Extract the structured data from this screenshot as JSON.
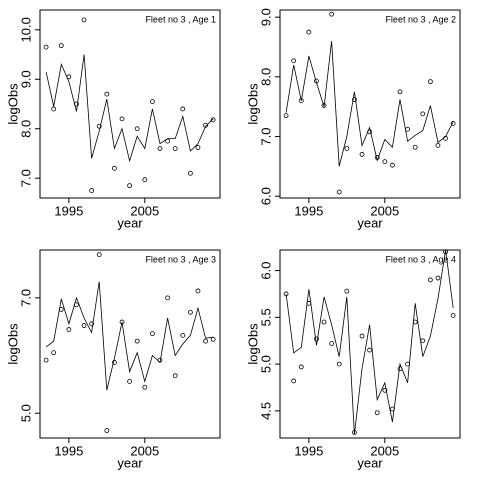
{
  "chart_data": [
    {
      "type": "line",
      "title": "Fleet no 3 , Age 1",
      "xlabel": "year",
      "ylabel": "logObs",
      "x": [
        1992,
        1993,
        1994,
        1995,
        1996,
        1997,
        1998,
        1999,
        2000,
        2001,
        2002,
        2003,
        2004,
        2005,
        2006,
        2007,
        2008,
        2009,
        2010,
        2011,
        2012,
        2013,
        2014
      ],
      "xlim": [
        1991.2,
        2014.9
      ],
      "xticks": [
        1995,
        2005
      ],
      "ylim": [
        6.6,
        10.4
      ],
      "yticks": [
        {
          "value": 7,
          "label": "7.0"
        },
        {
          "value": 8,
          "label": "8.0"
        },
        {
          "value": 9,
          "label": "9.0"
        },
        {
          "value": 10,
          "label": "10.0"
        }
      ],
      "series": [
        {
          "style": "points",
          "color": "#000000",
          "values": [
            9.65,
            8.4,
            9.68,
            9.05,
            8.5,
            10.2,
            6.75,
            8.05,
            8.7,
            7.2,
            8.2,
            6.85,
            8.0,
            6.97,
            8.55,
            7.6,
            7.75,
            7.6,
            8.4,
            7.1,
            7.62,
            8.07,
            8.18
          ]
        },
        {
          "style": "line",
          "color": "#000000",
          "values": [
            9.15,
            8.45,
            9.3,
            8.95,
            8.35,
            9.5,
            7.4,
            7.95,
            8.6,
            7.6,
            8.0,
            7.35,
            7.85,
            7.6,
            8.4,
            7.7,
            7.8,
            7.8,
            8.25,
            7.55,
            7.7,
            8.05,
            8.2
          ]
        }
      ]
    },
    {
      "type": "line",
      "title": "Fleet no 3 , Age 2",
      "xlabel": "year",
      "ylabel": "logObs",
      "x": [
        1992,
        1993,
        1994,
        1995,
        1996,
        1997,
        1998,
        1999,
        2000,
        2001,
        2002,
        2003,
        2004,
        2005,
        2006,
        2007,
        2008,
        2009,
        2010,
        2011,
        2012,
        2013,
        2014
      ],
      "xlim": [
        1991.2,
        2014.9
      ],
      "xticks": [
        1995,
        2005
      ],
      "ylim": [
        5.97,
        9.12
      ],
      "yticks": [
        {
          "value": 6,
          "label": "6.0"
        },
        {
          "value": 7,
          "label": "7.0"
        },
        {
          "value": 8,
          "label": "8.0"
        },
        {
          "value": 9,
          "label": "9.0"
        }
      ],
      "series": [
        {
          "style": "points",
          "color": "#000000",
          "values": [
            7.35,
            8.27,
            7.6,
            8.75,
            7.93,
            7.52,
            9.05,
            6.07,
            6.8,
            7.62,
            6.7,
            7.08,
            6.65,
            6.58,
            6.52,
            7.75,
            7.12,
            6.82,
            7.38,
            7.92,
            6.85,
            6.97,
            7.22
          ]
        },
        {
          "style": "line",
          "color": "#000000",
          "values": [
            7.4,
            8.2,
            7.6,
            8.35,
            7.9,
            7.5,
            8.6,
            6.5,
            7.0,
            7.75,
            6.85,
            7.15,
            6.6,
            6.95,
            6.82,
            7.62,
            6.92,
            7.02,
            7.1,
            7.52,
            6.9,
            7.0,
            7.25
          ]
        }
      ]
    },
    {
      "type": "line",
      "title": "Fleet no 3 , Age 3",
      "xlabel": "year",
      "ylabel": "logObs",
      "x": [
        1992,
        1993,
        1994,
        1995,
        1996,
        1997,
        1998,
        1999,
        2000,
        2001,
        2002,
        2003,
        2004,
        2005,
        2006,
        2007,
        2008,
        2009,
        2010,
        2011,
        2012,
        2013,
        2014
      ],
      "xlim": [
        1991.2,
        2014.9
      ],
      "xticks": [
        1995,
        2005
      ],
      "ylim": [
        4.57,
        7.83
      ],
      "yticks": [
        {
          "value": 5,
          "label": "5.0"
        },
        {
          "value": 7,
          "label": "7.0"
        }
      ],
      "series": [
        {
          "style": "points",
          "color": "#000000",
          "values": [
            5.92,
            6.05,
            6.8,
            6.45,
            6.88,
            6.52,
            6.55,
            7.75,
            4.7,
            5.88,
            6.58,
            5.55,
            6.25,
            5.45,
            6.38,
            5.92,
            7.0,
            5.65,
            6.35,
            6.75,
            7.12,
            6.25,
            6.28
          ]
        },
        {
          "style": "line",
          "color": "#000000",
          "values": [
            6.15,
            6.25,
            6.98,
            6.55,
            7.0,
            6.65,
            6.4,
            7.28,
            5.4,
            5.95,
            6.58,
            5.72,
            6.05,
            5.55,
            6.0,
            5.88,
            6.65,
            6.0,
            6.2,
            6.35,
            6.82,
            6.3,
            6.32
          ]
        }
      ]
    },
    {
      "type": "line",
      "title": "Fleet no 3 , Age 4",
      "xlabel": "year",
      "ylabel": "logObs",
      "x": [
        1992,
        1993,
        1994,
        1995,
        1996,
        1997,
        1998,
        1999,
        2000,
        2001,
        2002,
        2003,
        2004,
        2005,
        2006,
        2007,
        2008,
        2009,
        2010,
        2011,
        2012,
        2013,
        2014
      ],
      "xlim": [
        1991.2,
        2014.9
      ],
      "xticks": [
        1995,
        2005
      ],
      "ylim": [
        4.21,
        6.22
      ],
      "yticks": [
        {
          "value": 4.5,
          "label": "4.5"
        },
        {
          "value": 5,
          "label": "5.0"
        },
        {
          "value": 5.5,
          "label": "5.5"
        },
        {
          "value": 6,
          "label": "6.0"
        }
      ],
      "series": [
        {
          "style": "points",
          "color": "#000000",
          "values": [
            5.75,
            4.82,
            4.97,
            5.65,
            5.27,
            5.45,
            5.22,
            5.0,
            5.78,
            4.27,
            5.3,
            5.15,
            4.48,
            4.72,
            4.52,
            4.95,
            5.0,
            5.45,
            5.25,
            5.9,
            5.92,
            6.2,
            5.52
          ]
        },
        {
          "style": "line",
          "color": "#000000",
          "values": [
            5.75,
            5.12,
            5.18,
            5.8,
            5.2,
            5.72,
            5.42,
            5.08,
            5.72,
            4.25,
            4.95,
            5.42,
            4.62,
            4.8,
            4.38,
            5.0,
            4.8,
            5.65,
            5.08,
            5.3,
            5.7,
            6.22,
            5.6
          ]
        }
      ]
    }
  ]
}
